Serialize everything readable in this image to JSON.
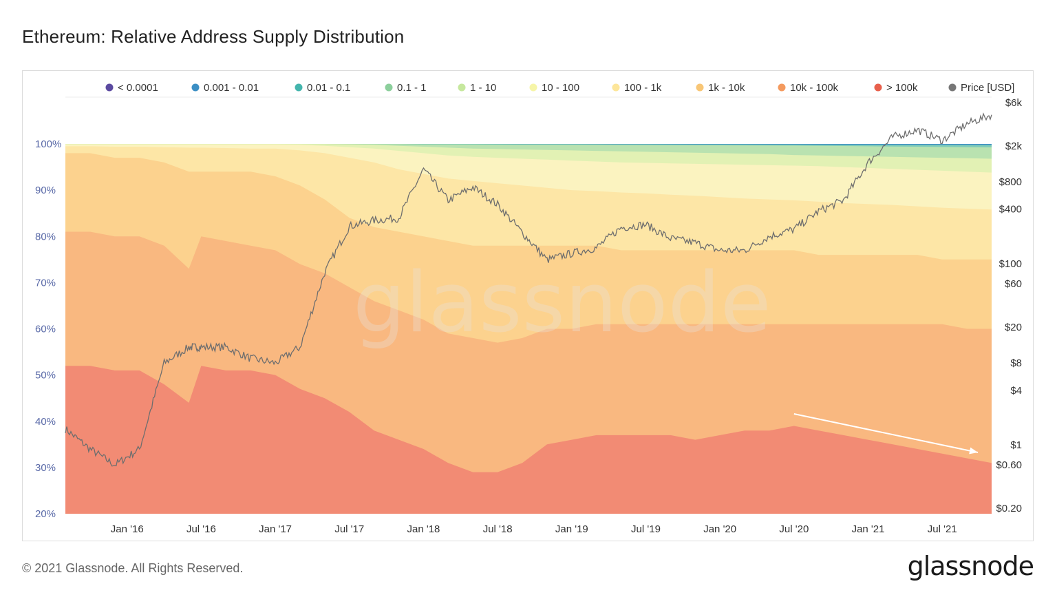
{
  "title": "Ethereum: Relative Address Supply Distribution",
  "footer": "© 2021 Glassnode. All Rights Reserved.",
  "brand": "glassnode",
  "watermark": "glassnode",
  "chart_data": {
    "type": "area",
    "stacked": true,
    "x": [
      "2015-08",
      "2015-10",
      "2015-12",
      "2016-02",
      "2016-04",
      "2016-06",
      "2016-07",
      "2016-09",
      "2016-11",
      "2017-01",
      "2017-03",
      "2017-05",
      "2017-07",
      "2017-09",
      "2017-11",
      "2018-01",
      "2018-03",
      "2018-05",
      "2018-07",
      "2018-09",
      "2018-11",
      "2019-01",
      "2019-03",
      "2019-05",
      "2019-07",
      "2019-09",
      "2019-11",
      "2020-01",
      "2020-03",
      "2020-05",
      "2020-07",
      "2020-09",
      "2020-11",
      "2021-01",
      "2021-03",
      "2021-05",
      "2021-07",
      "2021-09",
      "2021-11"
    ],
    "x_ticks": [
      "Jan '16",
      "Jul '16",
      "Jan '17",
      "Jul '17",
      "Jan '18",
      "Jul '18",
      "Jan '19",
      "Jul '19",
      "Jan '20",
      "Jul '20",
      "Jan '21",
      "Jul '21"
    ],
    "y_left": {
      "ticks": [
        "20%",
        "30%",
        "40%",
        "50%",
        "60%",
        "70%",
        "80%",
        "90%",
        "100%"
      ],
      "range": [
        20,
        100
      ]
    },
    "y_right": {
      "scale": "log",
      "ticks": [
        "$0.20",
        "$0.60",
        "$1",
        "$4",
        "$8",
        "$20",
        "$60",
        "$100",
        "$400",
        "$800",
        "$2k",
        "$6k"
      ]
    },
    "legend_position": "top",
    "series": [
      {
        "name": "> 100k",
        "color": "#f28b74",
        "cum": [
          52,
          52,
          51,
          51,
          48,
          44,
          52,
          51,
          51,
          50,
          47,
          45,
          42,
          38,
          36,
          34,
          31,
          29,
          29,
          31,
          35,
          36,
          37,
          37,
          37,
          37,
          36,
          37,
          38,
          38,
          39,
          38,
          37,
          36,
          35,
          34,
          33,
          32,
          31
        ]
      },
      {
        "name": "10k - 100k",
        "color": "#f9b880",
        "cum": [
          81,
          81,
          80,
          80,
          78,
          73,
          80,
          79,
          78,
          77,
          74,
          72,
          69,
          66,
          64,
          62,
          59,
          58,
          57,
          58,
          60,
          60,
          61,
          61,
          61,
          61,
          61,
          61,
          61,
          61,
          61,
          61,
          61,
          61,
          61,
          61,
          61,
          60,
          60
        ]
      },
      {
        "name": "1k - 10k",
        "color": "#fcd28e",
        "cum": [
          98,
          98,
          97,
          97,
          96,
          94,
          94,
          94,
          94,
          93,
          91,
          88,
          84,
          82,
          81,
          80,
          79,
          78,
          78,
          78,
          78,
          78,
          78,
          77,
          77,
          77,
          77,
          77,
          77,
          77,
          77,
          76,
          76,
          76,
          76,
          76,
          75,
          75,
          75
        ]
      },
      {
        "name": "100 - 1k",
        "color": "#fde6a6",
        "cum": [
          99.5,
          99.5,
          99.4,
          99.4,
          99.3,
          99.2,
          99.2,
          99.1,
          99.0,
          99.0,
          98.6,
          98.0,
          97.0,
          96.0,
          94.5,
          93.5,
          92.5,
          92.0,
          91.5,
          91.0,
          90.5,
          90.0,
          89.8,
          89.5,
          89.3,
          89.0,
          88.8,
          88.5,
          88.2,
          88.0,
          87.8,
          87.5,
          87.2,
          87.0,
          86.8,
          86.5,
          86.2,
          86.0,
          85.8
        ]
      },
      {
        "name": "10 - 100",
        "color": "#fbf3c0",
        "cum": [
          99.9,
          99.9,
          99.9,
          99.9,
          99.9,
          99.9,
          99.9,
          99.9,
          99.9,
          99.9,
          99.8,
          99.6,
          99.3,
          99.0,
          98.5,
          98.0,
          97.5,
          97.2,
          97.0,
          96.8,
          96.6,
          96.4,
          96.2,
          96.0,
          95.9,
          95.8,
          95.7,
          95.6,
          95.5,
          95.4,
          95.3,
          95.2,
          95.0,
          94.8,
          94.6,
          94.4,
          94.2,
          94.0,
          93.8
        ]
      },
      {
        "name": "1 - 10",
        "color": "#e2f1b4",
        "cum": [
          100,
          100,
          100,
          100,
          100,
          100,
          100,
          100,
          100,
          100,
          100,
          99.95,
          99.9,
          99.8,
          99.6,
          99.4,
          99.2,
          99.0,
          98.9,
          98.8,
          98.7,
          98.6,
          98.5,
          98.4,
          98.3,
          98.2,
          98.1,
          98.0,
          97.9,
          97.8,
          97.6,
          97.5,
          97.4,
          97.3,
          97.2,
          97.1,
          97.0,
          96.9,
          96.8
        ]
      },
      {
        "name": "0.1 - 1",
        "color": "#b9e2b0",
        "cum": [
          100,
          100,
          100,
          100,
          100,
          100,
          100,
          100,
          100,
          100,
          100,
          100,
          100,
          99.98,
          99.95,
          99.9,
          99.88,
          99.86,
          99.85,
          99.84,
          99.83,
          99.82,
          99.8,
          99.78,
          99.76,
          99.74,
          99.72,
          99.7,
          99.68,
          99.66,
          99.64,
          99.6,
          99.56,
          99.5,
          99.45,
          99.4,
          99.35,
          99.3,
          99.25
        ]
      },
      {
        "name": "0.01 - 0.1",
        "color": "#7fcbb8",
        "cum": [
          100,
          100,
          100,
          100,
          100,
          100,
          100,
          100,
          100,
          100,
          100,
          100,
          100,
          100,
          100,
          100,
          100,
          100,
          99.98,
          99.97,
          99.96,
          99.95,
          99.94,
          99.93,
          99.92,
          99.91,
          99.9,
          99.89,
          99.88,
          99.87,
          99.86,
          99.85,
          99.84,
          99.83,
          99.82,
          99.81,
          99.8,
          99.79,
          99.78
        ]
      },
      {
        "name": "0.001 - 0.01",
        "color": "#3c8fc4",
        "cum": [
          100,
          100,
          100,
          100,
          100,
          100,
          100,
          100,
          100,
          100,
          100,
          100,
          100,
          100,
          100,
          100,
          100,
          100,
          100,
          100,
          100,
          100,
          100,
          100,
          100,
          100,
          100,
          100,
          100,
          100,
          100,
          100,
          100,
          100,
          100,
          100,
          100,
          100,
          100
        ]
      },
      {
        "name": "< 0.0001",
        "color": "#5b4aa0",
        "cum": [
          100,
          100,
          100,
          100,
          100,
          100,
          100,
          100,
          100,
          100,
          100,
          100,
          100,
          100,
          100,
          100,
          100,
          100,
          100,
          100,
          100,
          100,
          100,
          100,
          100,
          100,
          100,
          100,
          100,
          100,
          100,
          100,
          100,
          100,
          100,
          100,
          100,
          100,
          100
        ]
      }
    ],
    "price": {
      "name": "Price [USD]",
      "color": "#6e6e6e",
      "values": [
        1.5,
        0.9,
        0.6,
        0.9,
        8,
        12,
        12,
        12,
        9,
        8,
        12,
        80,
        260,
        300,
        320,
        1100,
        500,
        700,
        450,
        220,
        110,
        130,
        150,
        250,
        270,
        190,
        170,
        140,
        140,
        200,
        240,
        380,
        500,
        1300,
        2500,
        3000,
        2300,
        3500,
        4400
      ]
    },
    "annotations": [
      {
        "type": "arrow",
        "from": "2020-07",
        "to": "2021-11",
        "color": "#ffffff"
      }
    ]
  }
}
